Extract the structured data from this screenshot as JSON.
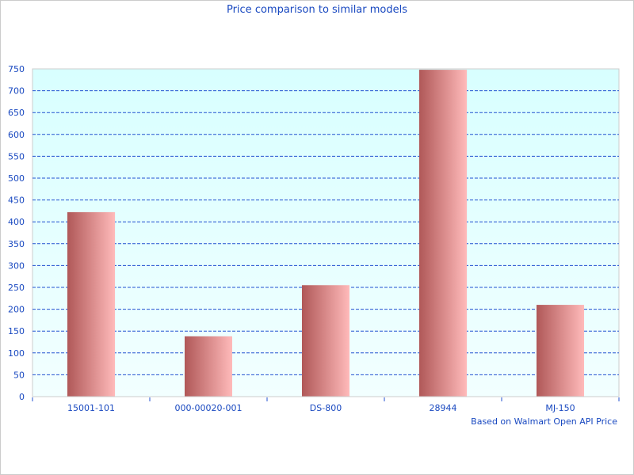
{
  "chart_data": {
    "type": "bar",
    "title": "Price comparison to similar models",
    "categories": [
      "15001-101",
      "000-00020-001",
      "DS-800",
      "28944",
      "MJ-150"
    ],
    "values": [
      422,
      138,
      255,
      748,
      210
    ],
    "xlabel": "Based on Walmart Open API Price",
    "ylabel": "",
    "ylim": [
      0,
      750
    ],
    "yticks": [
      0,
      50,
      100,
      150,
      200,
      250,
      300,
      350,
      400,
      450,
      500,
      550,
      600,
      650,
      700,
      750
    ],
    "grid": true,
    "colors": {
      "bar_dark": "#b05858",
      "bar_light": "#ffbaba",
      "plot_bg_top": "#d8ffff",
      "plot_bg_bottom": "#f2ffff",
      "text": "#1848c0",
      "grid": "#2050d0"
    }
  }
}
